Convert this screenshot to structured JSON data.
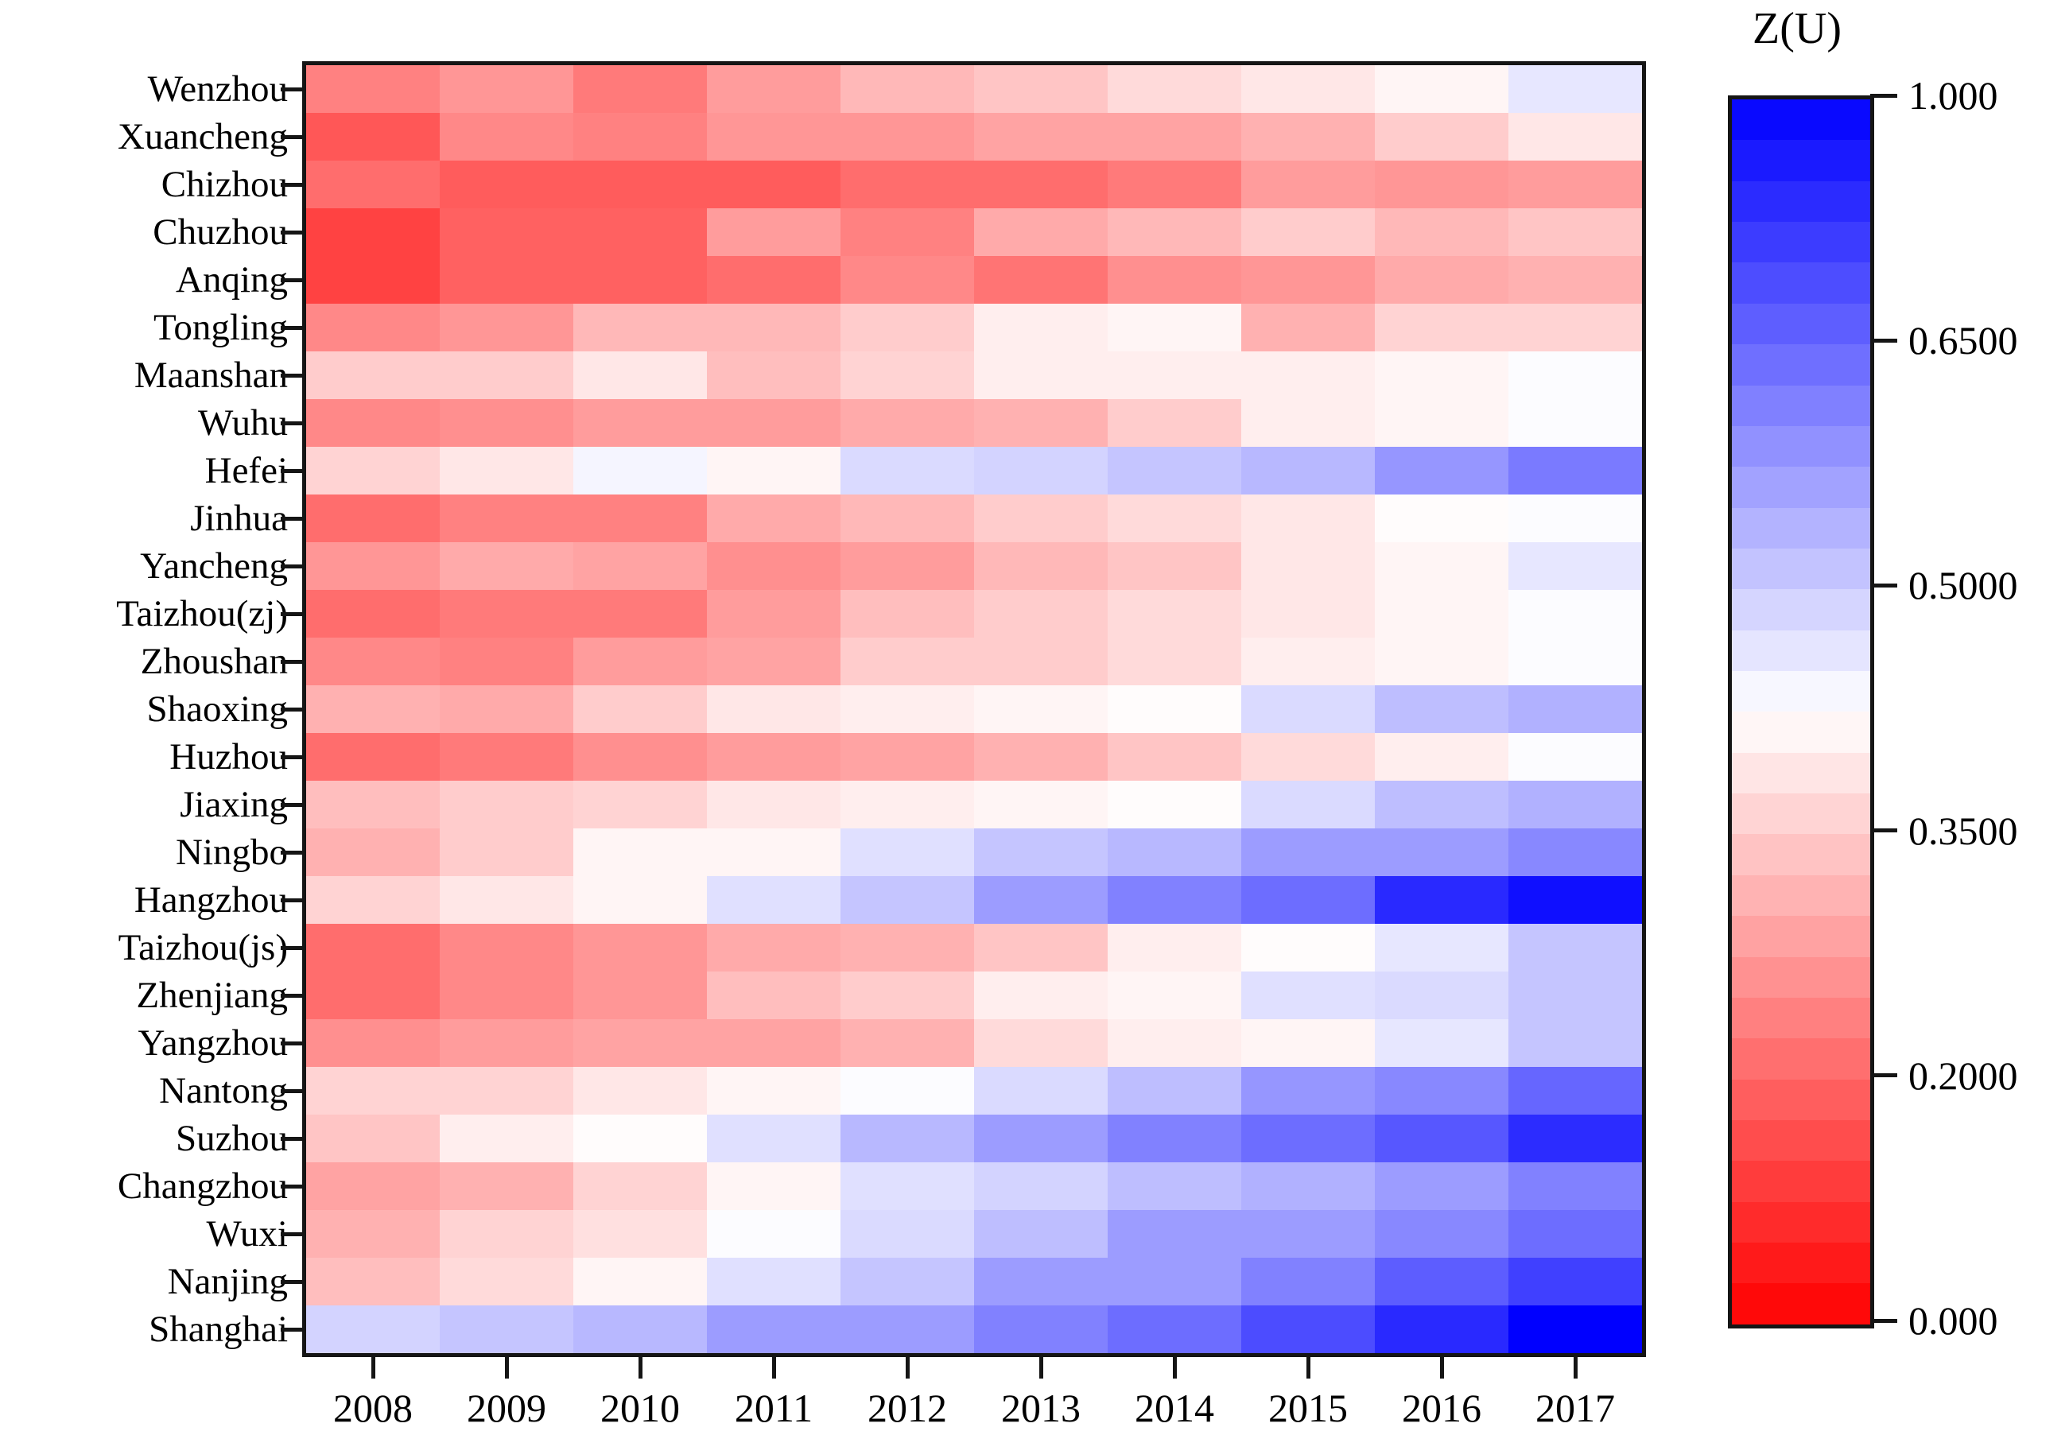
{
  "title": "Z(U)",
  "chart_data": {
    "type": "heatmap",
    "title": "Z(U)",
    "xlabel": "",
    "ylabel": "",
    "grid": false,
    "x": [
      "2008",
      "2009",
      "2010",
      "2011",
      "2012",
      "2013",
      "2014",
      "2015",
      "2016",
      "2017"
    ],
    "categories": [
      "Wenzhou",
      "Xuancheng",
      "Chizhou",
      "Chuzhou",
      "Anqing",
      "Tongling",
      "Maanshan",
      "Wuhu",
      "Hefei",
      "Jinhua",
      "Yancheng",
      "Taizhou(zj)",
      "Zhoushan",
      "Shaoxing",
      "Huzhou",
      "Jiaxing",
      "Ningbo",
      "Hangzhou",
      "Taizhou(js)",
      "Zhenjiang",
      "Yangzhou",
      "Nantong",
      "Suzhou",
      "Changzhou",
      "Wuxi",
      "Nanjing",
      "Shanghai"
    ],
    "series": [
      {
        "name": "Wenzhou",
        "values": [
          0.24,
          0.27,
          0.23,
          0.28,
          0.32,
          0.34,
          0.37,
          0.39,
          0.41,
          0.46
        ]
      },
      {
        "name": "Xuancheng",
        "values": [
          0.17,
          0.25,
          0.24,
          0.27,
          0.27,
          0.29,
          0.29,
          0.31,
          0.35,
          0.39
        ]
      },
      {
        "name": "Chizhou",
        "values": [
          0.21,
          0.18,
          0.18,
          0.18,
          0.21,
          0.21,
          0.23,
          0.28,
          0.27,
          0.28
        ]
      },
      {
        "name": "Chuzhou",
        "values": [
          0.13,
          0.19,
          0.19,
          0.28,
          0.24,
          0.3,
          0.32,
          0.35,
          0.32,
          0.34
        ]
      },
      {
        "name": "Anqing",
        "values": [
          0.13,
          0.19,
          0.19,
          0.21,
          0.25,
          0.22,
          0.26,
          0.27,
          0.3,
          0.31
        ]
      },
      {
        "name": "Tongling",
        "values": [
          0.25,
          0.27,
          0.32,
          0.32,
          0.35,
          0.4,
          0.41,
          0.31,
          0.36,
          0.36
        ]
      },
      {
        "name": "Maanshan",
        "values": [
          0.35,
          0.35,
          0.39,
          0.33,
          0.36,
          0.4,
          0.4,
          0.4,
          0.41,
          0.43
        ]
      },
      {
        "name": "Wuhu",
        "values": [
          0.25,
          0.26,
          0.28,
          0.28,
          0.3,
          0.31,
          0.35,
          0.4,
          0.41,
          0.43
        ]
      },
      {
        "name": "Hefei",
        "values": [
          0.36,
          0.39,
          0.44,
          0.41,
          0.48,
          0.49,
          0.51,
          0.53,
          0.58,
          0.62
        ]
      },
      {
        "name": "Jinhua",
        "values": [
          0.21,
          0.24,
          0.24,
          0.3,
          0.32,
          0.35,
          0.37,
          0.39,
          0.42,
          0.43
        ]
      },
      {
        "name": "Yancheng",
        "values": [
          0.27,
          0.3,
          0.29,
          0.26,
          0.28,
          0.32,
          0.34,
          0.39,
          0.41,
          0.46
        ]
      },
      {
        "name": "Taizhou(zj)",
        "values": [
          0.21,
          0.23,
          0.23,
          0.28,
          0.33,
          0.35,
          0.37,
          0.39,
          0.41,
          0.43
        ]
      },
      {
        "name": "Zhoushan",
        "values": [
          0.25,
          0.24,
          0.28,
          0.29,
          0.35,
          0.35,
          0.37,
          0.4,
          0.41,
          0.43
        ]
      },
      {
        "name": "Shaoxing",
        "values": [
          0.31,
          0.3,
          0.35,
          0.39,
          0.4,
          0.41,
          0.42,
          0.48,
          0.52,
          0.54
        ]
      },
      {
        "name": "Huzhou",
        "values": [
          0.21,
          0.23,
          0.26,
          0.28,
          0.29,
          0.31,
          0.34,
          0.37,
          0.4,
          0.43
        ]
      },
      {
        "name": "Jiaxing",
        "values": [
          0.33,
          0.35,
          0.36,
          0.39,
          0.4,
          0.41,
          0.42,
          0.48,
          0.52,
          0.54
        ]
      },
      {
        "name": "Ningbo",
        "values": [
          0.31,
          0.35,
          0.41,
          0.41,
          0.47,
          0.51,
          0.53,
          0.57,
          0.57,
          0.6
        ]
      },
      {
        "name": "Hangzhou",
        "values": [
          0.36,
          0.39,
          0.41,
          0.47,
          0.51,
          0.57,
          0.61,
          0.64,
          0.86,
          0.95
        ]
      },
      {
        "name": "Taizhou(js)",
        "values": [
          0.21,
          0.25,
          0.27,
          0.3,
          0.31,
          0.34,
          0.4,
          0.42,
          0.46,
          0.51
        ]
      },
      {
        "name": "Zhenjiang",
        "values": [
          0.21,
          0.25,
          0.27,
          0.33,
          0.35,
          0.4,
          0.41,
          0.47,
          0.48,
          0.51
        ]
      },
      {
        "name": "Yangzhou",
        "values": [
          0.26,
          0.28,
          0.29,
          0.29,
          0.31,
          0.37,
          0.4,
          0.41,
          0.46,
          0.51
        ]
      },
      {
        "name": "Nantong",
        "values": [
          0.36,
          0.36,
          0.39,
          0.41,
          0.43,
          0.48,
          0.52,
          0.58,
          0.6,
          0.65
        ]
      },
      {
        "name": "Suzhou",
        "values": [
          0.34,
          0.4,
          0.42,
          0.47,
          0.53,
          0.57,
          0.61,
          0.64,
          0.7,
          0.85
        ]
      },
      {
        "name": "Changzhou",
        "values": [
          0.29,
          0.31,
          0.36,
          0.41,
          0.47,
          0.49,
          0.52,
          0.54,
          0.57,
          0.61
        ]
      },
      {
        "name": "Wuxi",
        "values": [
          0.31,
          0.36,
          0.38,
          0.43,
          0.48,
          0.52,
          0.57,
          0.57,
          0.6,
          0.64
        ]
      },
      {
        "name": "Nanjing",
        "values": [
          0.33,
          0.37,
          0.41,
          0.47,
          0.51,
          0.57,
          0.57,
          0.61,
          0.68,
          0.78
        ]
      },
      {
        "name": "Shanghai",
        "values": [
          0.49,
          0.51,
          0.53,
          0.57,
          0.57,
          0.61,
          0.64,
          0.74,
          0.86,
          1.0
        ]
      }
    ],
    "colorbar": {
      "title": "Z(U)",
      "tick_labels": [
        "1.000",
        "0.6500",
        "0.5000",
        "0.3500",
        "0.2000",
        "0.000"
      ],
      "tick_values": [
        1.0,
        0.65,
        0.5,
        0.35,
        0.2,
        0.0
      ],
      "ticks_evenly_spaced": true,
      "steps": 30,
      "color_low": "#ff0000",
      "color_mid": "#ffffff",
      "color_high": "#0000ff"
    },
    "value_scale_knots": {
      "values": [
        0.0,
        0.2,
        0.35,
        0.5,
        0.65,
        1.0
      ],
      "positions": [
        0.0,
        0.2,
        0.4,
        0.6,
        0.8,
        1.0
      ]
    }
  }
}
